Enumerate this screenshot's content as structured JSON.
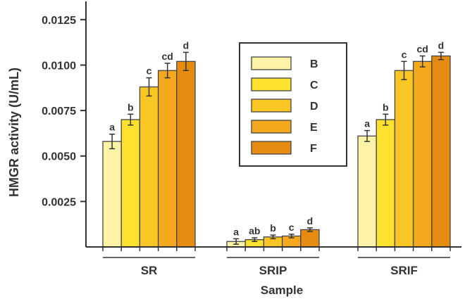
{
  "chart_data": {
    "type": "bar",
    "title": "",
    "ylabel": "HMGR activity (U/mL)",
    "xlabel": "Sample",
    "ylim": [
      0,
      0.0135
    ],
    "yticks": [
      0.0025,
      0.005,
      0.0075,
      0.01,
      0.0125
    ],
    "ytick_labels": [
      "0.0025",
      "0.0050",
      "0.0075",
      "0.0100",
      "0.0125"
    ],
    "legend_position": "center",
    "groups": [
      "SR",
      "SRIP",
      "SRIF"
    ],
    "series": [
      {
        "name": "B",
        "color": "#FDF3A6",
        "values": [
          0.0058,
          0.0003,
          0.0061
        ],
        "errors": [
          0.0004,
          0.00015,
          0.0003
        ],
        "labels": [
          "a",
          "a",
          "a"
        ]
      },
      {
        "name": "C",
        "color": "#FDE12F",
        "values": [
          0.007,
          0.0004,
          0.007
        ],
        "errors": [
          0.0003,
          0.0001,
          0.0003
        ],
        "labels": [
          "b",
          "ab",
          "b"
        ]
      },
      {
        "name": "D",
        "color": "#FAC623",
        "values": [
          0.0088,
          0.00055,
          0.0097
        ],
        "errors": [
          0.0005,
          0.0001,
          0.0005
        ],
        "labels": [
          "c",
          "b",
          "c"
        ]
      },
      {
        "name": "E",
        "color": "#F4A81E",
        "values": [
          0.0097,
          0.0006,
          0.0102
        ],
        "errors": [
          0.0004,
          0.0001,
          0.0003
        ],
        "labels": [
          "cd",
          "c",
          "cd"
        ]
      },
      {
        "name": "F",
        "color": "#E58C10",
        "values": [
          0.0102,
          0.00095,
          0.0105
        ],
        "errors": [
          0.0005,
          0.0001,
          0.0002
        ],
        "labels": [
          "d",
          "d",
          "d"
        ]
      }
    ]
  }
}
